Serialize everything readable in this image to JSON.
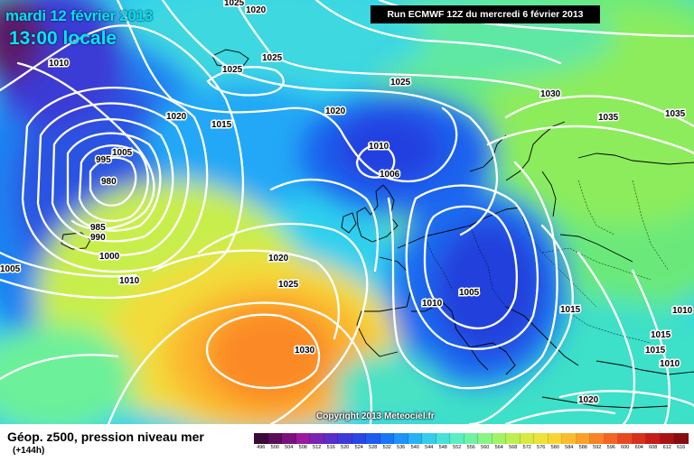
{
  "header": {
    "date": "mardi 12 février 2013",
    "time": "13:00 locale",
    "run": "Run ECMWF 12Z du mercredi 6 février 2013"
  },
  "copyright": "Copyright 2013 Meteociel.fr",
  "legend": {
    "title": "Géop. z500, pression niveau mer",
    "forecast_hour": "(+144h)",
    "scale_values": [
      "496",
      "500",
      "504",
      "508",
      "512",
      "516",
      "520",
      "524",
      "528",
      "532",
      "536",
      "540",
      "544",
      "548",
      "552",
      "556",
      "560",
      "564",
      "568",
      "572",
      "576",
      "580",
      "584",
      "588",
      "592",
      "596",
      "600",
      "604",
      "608",
      "612",
      "616"
    ],
    "scale_colors": [
      "#3a0a3a",
      "#5a0e5a",
      "#7a127a",
      "#9a1aa0",
      "#7a24b4",
      "#5a2ec8",
      "#3c3ad8",
      "#2a46e4",
      "#1e5cf0",
      "#1876f6",
      "#1c94f8",
      "#26b2f4",
      "#34cdea",
      "#46e2d8",
      "#5aeec0",
      "#70f2a4",
      "#88f484",
      "#a2f266",
      "#bcef50",
      "#d6ea42",
      "#ece23a",
      "#fad434",
      "#fcbc2e",
      "#fca02a",
      "#fa8226",
      "#f46424",
      "#e84820",
      "#d8301c",
      "#c41e18",
      "#a81414",
      "#8a0c10"
    ]
  },
  "isobars": [
    {
      "label": "1010"
    },
    {
      "label": "1020"
    },
    {
      "label": "1025"
    },
    {
      "label": "1025"
    },
    {
      "label": "1025"
    },
    {
      "label": "1025"
    },
    {
      "label": "1020"
    },
    {
      "label": "1015"
    },
    {
      "label": "1020"
    },
    {
      "label": "1030"
    },
    {
      "label": "1035"
    },
    {
      "label": "1035"
    },
    {
      "label": "1005"
    },
    {
      "label": "995"
    },
    {
      "label": "980"
    },
    {
      "label": "1010"
    },
    {
      "label": "1006"
    },
    {
      "label": "985"
    },
    {
      "label": "990"
    },
    {
      "label": "1000"
    },
    {
      "label": "1005"
    },
    {
      "label": "1010"
    },
    {
      "label": "1020"
    },
    {
      "label": "1025"
    },
    {
      "label": "1030"
    },
    {
      "label": "1010"
    },
    {
      "label": "1005"
    },
    {
      "label": "1015"
    },
    {
      "label": "1015"
    },
    {
      "label": "1015"
    },
    {
      "label": "1010"
    },
    {
      "label": "1010"
    },
    {
      "label": "1020"
    }
  ]
}
